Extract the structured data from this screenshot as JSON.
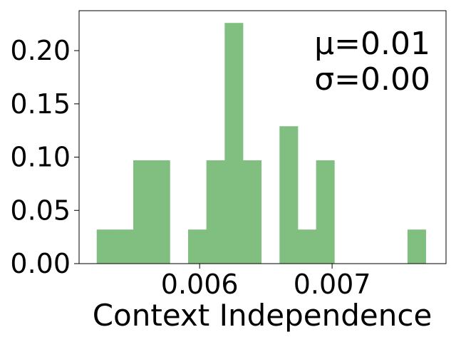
{
  "chart_data": {
    "type": "bar",
    "subtype": "histogram",
    "title": "",
    "xlabel": "Context Independence",
    "ylabel": "",
    "xlim": [
      0.00509,
      0.00786
    ],
    "ylim": [
      0.0,
      0.2375
    ],
    "xticks": [
      0.006,
      0.007
    ],
    "xtick_labels": [
      "0.006",
      "0.007"
    ],
    "yticks": [
      0.0,
      0.05,
      0.1,
      0.15,
      0.2
    ],
    "ytick_labels": [
      "0.00",
      "0.05",
      "0.10",
      "0.15",
      "0.20"
    ],
    "bin_width": 0.000138,
    "bins": [
      {
        "x0": 0.005223,
        "height": 0.032
      },
      {
        "x0": 0.005361,
        "height": 0.032
      },
      {
        "x0": 0.005499,
        "height": 0.097
      },
      {
        "x0": 0.005637,
        "height": 0.097
      },
      {
        "x0": 0.005775,
        "height": 0.0
      },
      {
        "x0": 0.005913,
        "height": 0.032
      },
      {
        "x0": 0.006051,
        "height": 0.097
      },
      {
        "x0": 0.006189,
        "height": 0.226
      },
      {
        "x0": 0.006327,
        "height": 0.097
      },
      {
        "x0": 0.006465,
        "height": 0.0
      },
      {
        "x0": 0.006603,
        "height": 0.129
      },
      {
        "x0": 0.006741,
        "height": 0.032
      },
      {
        "x0": 0.006879,
        "height": 0.097
      },
      {
        "x0": 0.007017,
        "height": 0.0
      },
      {
        "x0": 0.007155,
        "height": 0.0
      },
      {
        "x0": 0.007293,
        "height": 0.0
      },
      {
        "x0": 0.007431,
        "height": 0.0
      },
      {
        "x0": 0.007569,
        "height": 0.032
      }
    ],
    "bar_color": "#80bf80",
    "grid": false,
    "annotations": {
      "mu": "μ=0.01",
      "sigma": "σ=0.00"
    }
  }
}
